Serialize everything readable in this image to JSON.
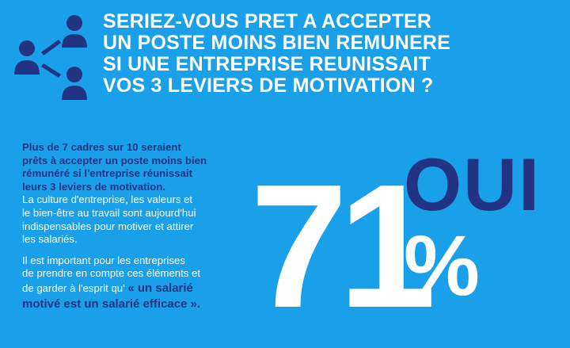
{
  "headline": {
    "lines": [
      "SERIEZ-VOUS PRET A ACCEPTER",
      "UN POSTE MOINS BIEN REMUNERE",
      "SI UNE ENTREPRISE REUNISSAIT",
      "VOS 3 LEVIERS DE MOTIVATION ?"
    ]
  },
  "icon": {
    "name": "people-network-icon",
    "color": "#233384"
  },
  "body": {
    "intro_bold": [
      "Plus de 7 cadres sur 10 seraient",
      "prêts à accepter un poste moins bien",
      "rémunéré si l'entreprise réunissait",
      "leurs 3 leviers de motivation."
    ],
    "paragraph1": [
      "La culture d'entreprise, les valeurs et",
      "le bien-être au travail sont aujourd'hui",
      "indispensables pour motiver et attirer",
      "les salariés."
    ],
    "paragraph2": [
      "Il est important pour les entreprises",
      "de prendre en compte ces éléments et",
      "de garder à l'esprit qu'"
    ],
    "quote_part1": "« un salarié",
    "quote_part2": "motivé est un salarié efficace »."
  },
  "stat": {
    "value": "71",
    "percent_sign": "%",
    "answer": "OUI"
  },
  "colors": {
    "background": "#1aa0e8",
    "dark_blue": "#233384",
    "white": "#ffffff"
  }
}
